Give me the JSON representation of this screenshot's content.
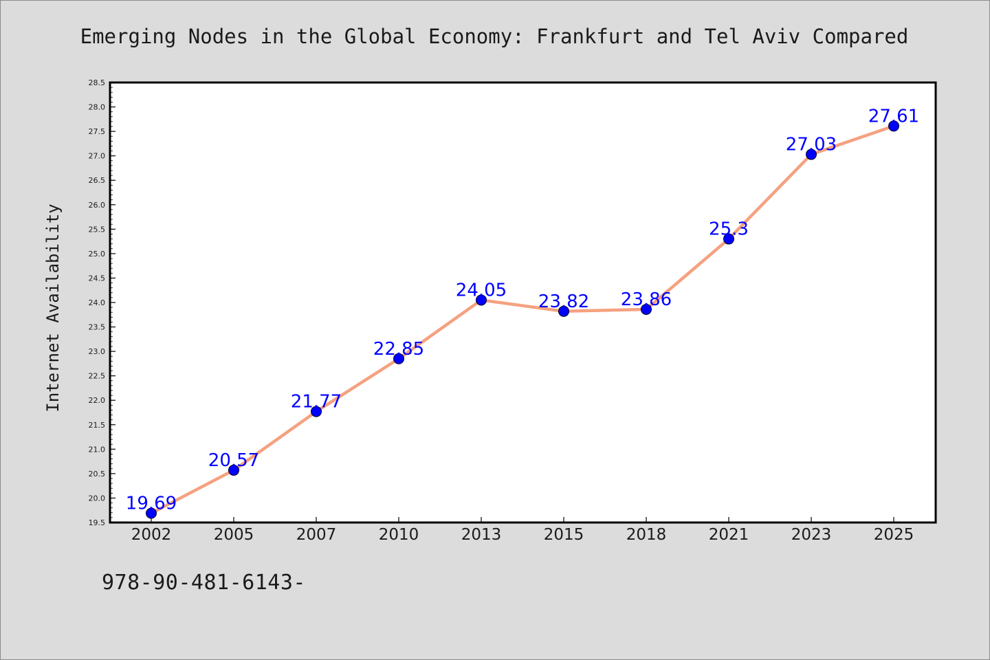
{
  "chart_data": {
    "type": "line",
    "title": "Emerging Nodes in the Global Economy: Frankfurt and Tel Aviv Compared",
    "xlabel": "",
    "ylabel": "Internet Availability",
    "categories": [
      "2002",
      "2005",
      "2007",
      "2010",
      "2013",
      "2015",
      "2018",
      "2021",
      "2023",
      "2025"
    ],
    "series": [
      {
        "name": "",
        "values": [
          19.69,
          20.57,
          21.77,
          22.85,
          24.05,
          23.82,
          23.86,
          25.3,
          27.03,
          27.61
        ],
        "data_labels": [
          "19.69",
          "20.57",
          "21.77",
          "22.85",
          "24.05",
          "23.82",
          "23.86",
          "25.3",
          "27.03",
          "27.61"
        ]
      }
    ],
    "ylim": [
      19.5,
      28.5
    ],
    "yticks": [
      "19.5",
      "20.0",
      "20.5",
      "21.0",
      "21.5",
      "22.0",
      "22.5",
      "23.0",
      "23.5",
      "24.0",
      "24.5",
      "25.0",
      "25.5",
      "26.0",
      "26.5",
      "27.0",
      "27.5",
      "28.0",
      "28.5"
    ],
    "grid": false,
    "legend": "none"
  },
  "footer": {
    "code": "978-90-481-6143-"
  },
  "colors": {
    "background": "#dcdcdc",
    "plot_area": "#ffffff",
    "line": "#f5a17f",
    "marker": "#0000ff",
    "data_label": "#0000ff",
    "text": "#1a1a1a"
  }
}
